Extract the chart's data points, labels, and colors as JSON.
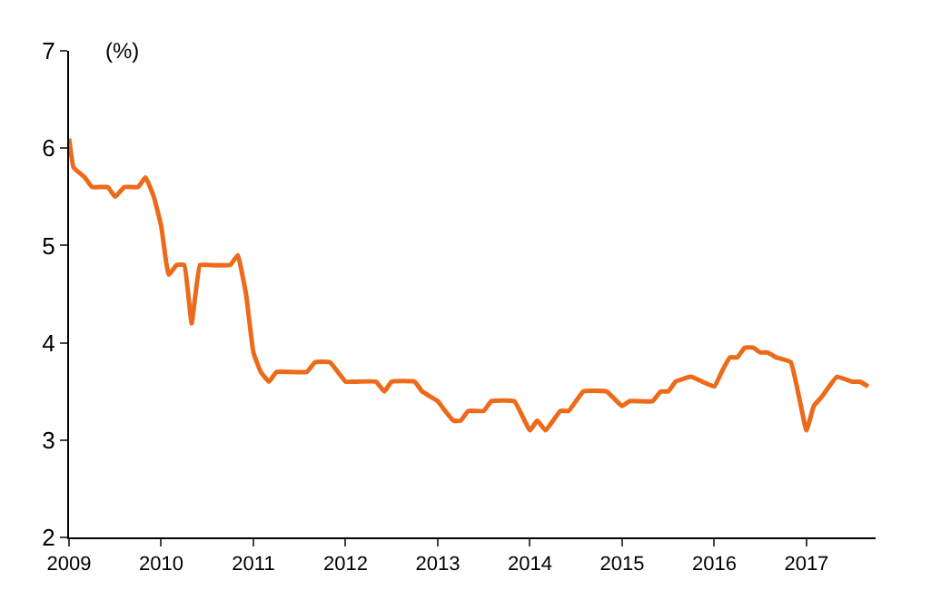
{
  "chart_data": {
    "type": "line",
    "ylabel": "(%)",
    "x": [
      2009.0,
      2009.05,
      2009.17,
      2009.25,
      2009.42,
      2009.5,
      2009.6,
      2009.75,
      2009.83,
      2009.92,
      2010.0,
      2010.08,
      2010.17,
      2010.25,
      2010.33,
      2010.42,
      2010.5,
      2010.75,
      2010.83,
      2010.92,
      2011.0,
      2011.08,
      2011.17,
      2011.25,
      2011.58,
      2011.67,
      2011.83,
      2012.0,
      2012.08,
      2012.33,
      2012.42,
      2012.5,
      2012.75,
      2012.83,
      2013.0,
      2013.08,
      2013.17,
      2013.25,
      2013.33,
      2013.5,
      2013.58,
      2013.83,
      2014.0,
      2014.08,
      2014.17,
      2014.33,
      2014.42,
      2014.58,
      2014.83,
      2015.0,
      2015.08,
      2015.33,
      2015.42,
      2015.5,
      2015.58,
      2015.75,
      2016.0,
      2016.08,
      2016.17,
      2016.25,
      2016.33,
      2016.42,
      2016.5,
      2016.58,
      2016.67,
      2016.83,
      2017.0,
      2017.08,
      2017.17,
      2017.33,
      2017.5,
      2017.58,
      2017.67
    ],
    "series": [
      {
        "color": "#ee6a1b",
        "values": [
          6.1,
          5.8,
          5.7,
          5.6,
          5.6,
          5.5,
          5.6,
          5.6,
          5.7,
          5.5,
          5.2,
          4.7,
          4.8,
          4.8,
          4.2,
          4.8,
          4.8,
          4.8,
          4.9,
          4.5,
          3.9,
          3.7,
          3.6,
          3.7,
          3.7,
          3.8,
          3.8,
          3.6,
          3.6,
          3.6,
          3.5,
          3.6,
          3.6,
          3.5,
          3.4,
          3.3,
          3.2,
          3.2,
          3.3,
          3.3,
          3.4,
          3.4,
          3.1,
          3.2,
          3.1,
          3.3,
          3.3,
          3.5,
          3.5,
          3.35,
          3.4,
          3.4,
          3.5,
          3.5,
          3.6,
          3.65,
          3.55,
          3.7,
          3.85,
          3.85,
          3.95,
          3.95,
          3.9,
          3.9,
          3.85,
          3.8,
          3.1,
          3.35,
          3.45,
          3.65,
          3.6,
          3.6,
          3.55
        ]
      }
    ],
    "xlim": [
      2009,
      2017.75
    ],
    "xticks": [
      2009,
      2010,
      2011,
      2012,
      2013,
      2014,
      2015,
      2016,
      2017
    ],
    "ylim": [
      2,
      7
    ],
    "yticks": [
      2,
      3,
      4,
      5,
      6,
      7
    ],
    "marker": "none",
    "line_style": "solid"
  }
}
